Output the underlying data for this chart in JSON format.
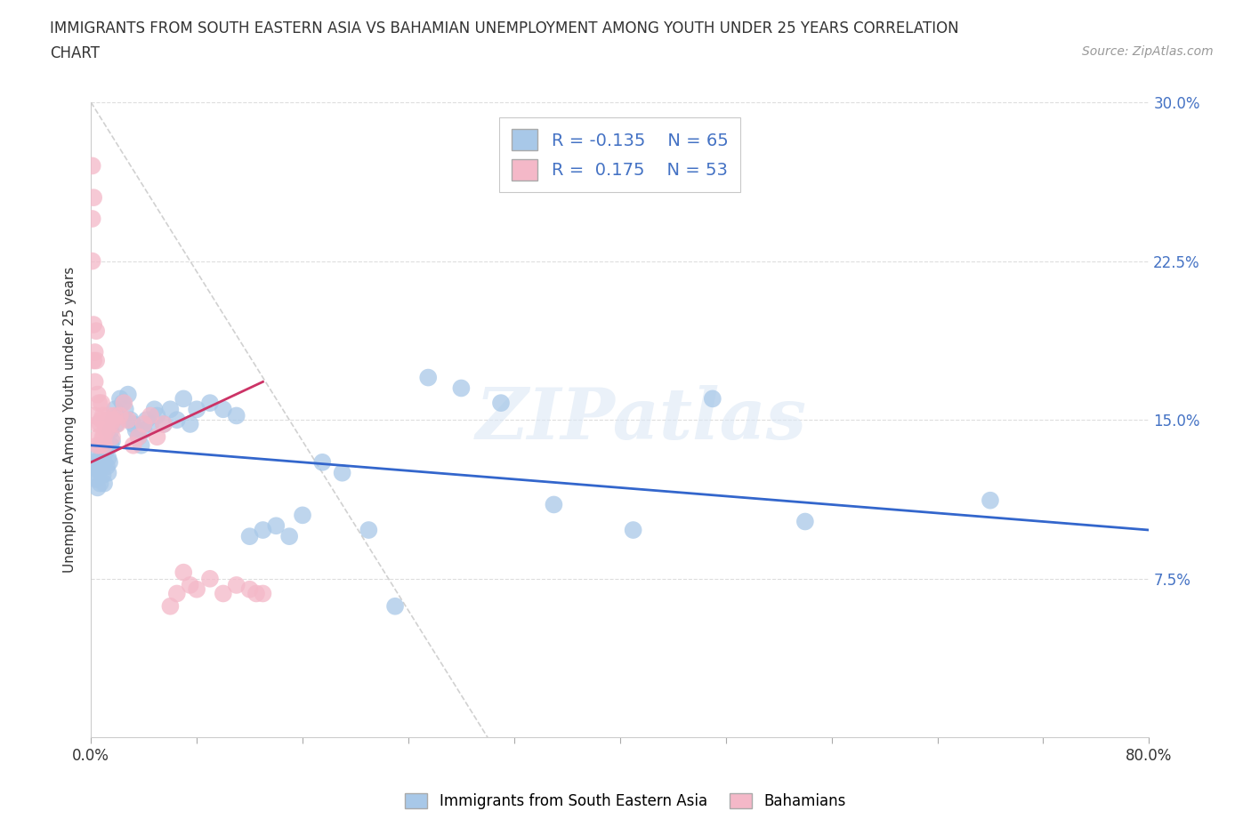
{
  "title_line1": "IMMIGRANTS FROM SOUTH EASTERN ASIA VS BAHAMIAN UNEMPLOYMENT AMONG YOUTH UNDER 25 YEARS CORRELATION",
  "title_line2": "CHART",
  "source_text": "Source: ZipAtlas.com",
  "ylabel": "Unemployment Among Youth under 25 years",
  "xlim": [
    0.0,
    0.8
  ],
  "ylim": [
    0.0,
    0.3
  ],
  "blue_color": "#a8c8e8",
  "pink_color": "#f4b8c8",
  "blue_line_color": "#3366cc",
  "pink_line_color": "#cc3366",
  "diag_color": "#cccccc",
  "grid_color": "#dddddd",
  "right_tick_color": "#4472c4",
  "legend_text_color": "#4472c4",
  "watermark": "ZIPatlas",
  "blue_scatter_x": [
    0.001,
    0.002,
    0.003,
    0.004,
    0.005,
    0.005,
    0.006,
    0.007,
    0.007,
    0.008,
    0.009,
    0.01,
    0.01,
    0.011,
    0.012,
    0.013,
    0.013,
    0.014,
    0.015,
    0.015,
    0.016,
    0.017,
    0.018,
    0.019,
    0.02,
    0.022,
    0.024,
    0.026,
    0.028,
    0.03,
    0.032,
    0.034,
    0.036,
    0.038,
    0.04,
    0.042,
    0.045,
    0.048,
    0.05,
    0.055,
    0.06,
    0.065,
    0.07,
    0.075,
    0.08,
    0.09,
    0.1,
    0.11,
    0.12,
    0.13,
    0.14,
    0.15,
    0.16,
    0.175,
    0.19,
    0.21,
    0.23,
    0.255,
    0.28,
    0.31,
    0.35,
    0.41,
    0.47,
    0.54,
    0.68
  ],
  "blue_scatter_y": [
    0.125,
    0.13,
    0.128,
    0.122,
    0.135,
    0.118,
    0.126,
    0.12,
    0.132,
    0.128,
    0.124,
    0.13,
    0.12,
    0.135,
    0.128,
    0.132,
    0.125,
    0.13,
    0.145,
    0.138,
    0.14,
    0.15,
    0.155,
    0.148,
    0.152,
    0.16,
    0.158,
    0.155,
    0.162,
    0.15,
    0.148,
    0.145,
    0.142,
    0.138,
    0.145,
    0.15,
    0.148,
    0.155,
    0.152,
    0.148,
    0.155,
    0.15,
    0.16,
    0.148,
    0.155,
    0.158,
    0.155,
    0.152,
    0.095,
    0.098,
    0.1,
    0.095,
    0.105,
    0.13,
    0.125,
    0.098,
    0.062,
    0.17,
    0.165,
    0.158,
    0.11,
    0.098,
    0.16,
    0.102,
    0.112
  ],
  "pink_scatter_x": [
    0.001,
    0.001,
    0.001,
    0.002,
    0.002,
    0.002,
    0.003,
    0.003,
    0.003,
    0.004,
    0.004,
    0.005,
    0.005,
    0.005,
    0.006,
    0.006,
    0.007,
    0.007,
    0.008,
    0.008,
    0.009,
    0.009,
    0.01,
    0.01,
    0.011,
    0.012,
    0.013,
    0.014,
    0.015,
    0.016,
    0.017,
    0.018,
    0.02,
    0.022,
    0.025,
    0.028,
    0.032,
    0.036,
    0.04,
    0.045,
    0.05,
    0.055,
    0.06,
    0.065,
    0.07,
    0.075,
    0.08,
    0.09,
    0.1,
    0.11,
    0.12,
    0.125,
    0.13
  ],
  "pink_scatter_y": [
    0.245,
    0.27,
    0.225,
    0.255,
    0.195,
    0.178,
    0.182,
    0.168,
    0.152,
    0.192,
    0.178,
    0.148,
    0.138,
    0.162,
    0.158,
    0.142,
    0.148,
    0.138,
    0.158,
    0.15,
    0.142,
    0.152,
    0.138,
    0.142,
    0.148,
    0.145,
    0.15,
    0.152,
    0.148,
    0.142,
    0.15,
    0.152,
    0.148,
    0.152,
    0.158,
    0.15,
    0.138,
    0.142,
    0.148,
    0.152,
    0.142,
    0.148,
    0.062,
    0.068,
    0.078,
    0.072,
    0.07,
    0.075,
    0.068,
    0.072,
    0.07,
    0.068,
    0.068
  ],
  "blue_line_x": [
    0.0,
    0.8
  ],
  "blue_line_y": [
    0.138,
    0.098
  ],
  "pink_line_x": [
    0.0,
    0.13
  ],
  "pink_line_y": [
    0.13,
    0.168
  ],
  "diag_line_x": [
    0.0,
    0.3
  ],
  "diag_line_y": [
    0.3,
    0.0
  ]
}
